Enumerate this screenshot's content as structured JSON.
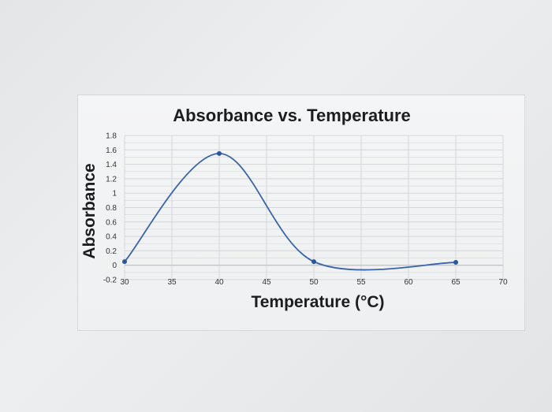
{
  "chart_data": {
    "type": "line",
    "title": "Absorbance vs. Temperature",
    "xlabel": "Temperature (°C)",
    "ylabel": "Absorbance",
    "xlim": [
      30,
      70
    ],
    "ylim": [
      -0.2,
      1.8
    ],
    "x_ticks": [
      "30",
      "35",
      "40",
      "45",
      "50",
      "55",
      "60",
      "65",
      "70"
    ],
    "y_ticks": [
      "-0.2",
      "0",
      "0.2",
      "0.4",
      "0.6",
      "0.8",
      "1",
      "1.2",
      "1.4",
      "1.6",
      "1.8"
    ],
    "grid": true,
    "legend": "none",
    "smooth": true,
    "series": [
      {
        "x": [
          30,
          40,
          50,
          65
        ],
        "y": [
          0.05,
          1.55,
          0.05,
          0.04
        ]
      }
    ],
    "colors": {
      "line": "#3a63a8",
      "marker": "#2b56a0",
      "grid": "#d4d6d8"
    }
  }
}
